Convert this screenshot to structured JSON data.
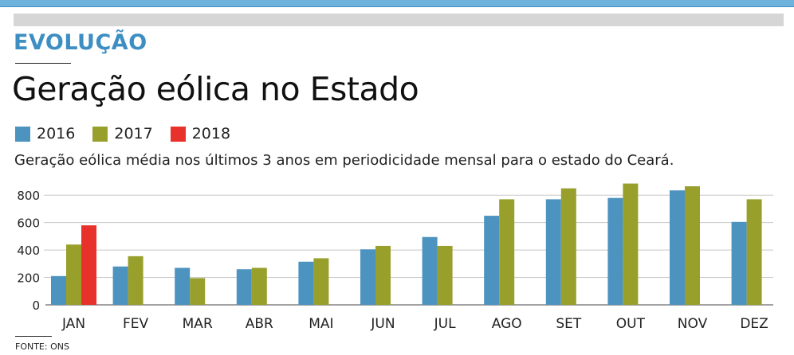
{
  "header": {
    "kicker": "EVOLUÇÃO",
    "title": "Geração eólica no Estado",
    "subtitle": "Geração eólica média nos últimos 3 anos em periodicidade mensal para o estado do Ceará."
  },
  "legend": [
    {
      "label": "2016",
      "color": "#4d93c0"
    },
    {
      "label": "2017",
      "color": "#98a02b"
    },
    {
      "label": "2018",
      "color": "#e8312b"
    }
  ],
  "source": "FONTE: ONS",
  "chart_data": {
    "type": "bar",
    "title": "Geração eólica no Estado",
    "xlabel": "",
    "ylabel": "",
    "ylim": [
      0,
      900
    ],
    "yticks": [
      0,
      200,
      400,
      600,
      800
    ],
    "ytick_labels": [
      "0",
      "200",
      "400",
      "600",
      "800"
    ],
    "categories": [
      "JAN",
      "FEV",
      "MAR",
      "ABR",
      "MAI",
      "JUN",
      "JUL",
      "AGO",
      "SET",
      "OUT",
      "NOV",
      "DEZ"
    ],
    "series": [
      {
        "name": "2016",
        "color": "#4d93c0",
        "values": [
          210,
          280,
          270,
          260,
          315,
          405,
          495,
          650,
          770,
          780,
          835,
          605
        ]
      },
      {
        "name": "2017",
        "color": "#98a02b",
        "values": [
          440,
          355,
          195,
          270,
          340,
          430,
          430,
          770,
          850,
          885,
          865,
          770
        ]
      },
      {
        "name": "2018",
        "color": "#e8312b",
        "values": [
          580,
          null,
          null,
          null,
          null,
          null,
          null,
          null,
          null,
          null,
          null,
          null
        ]
      }
    ]
  }
}
